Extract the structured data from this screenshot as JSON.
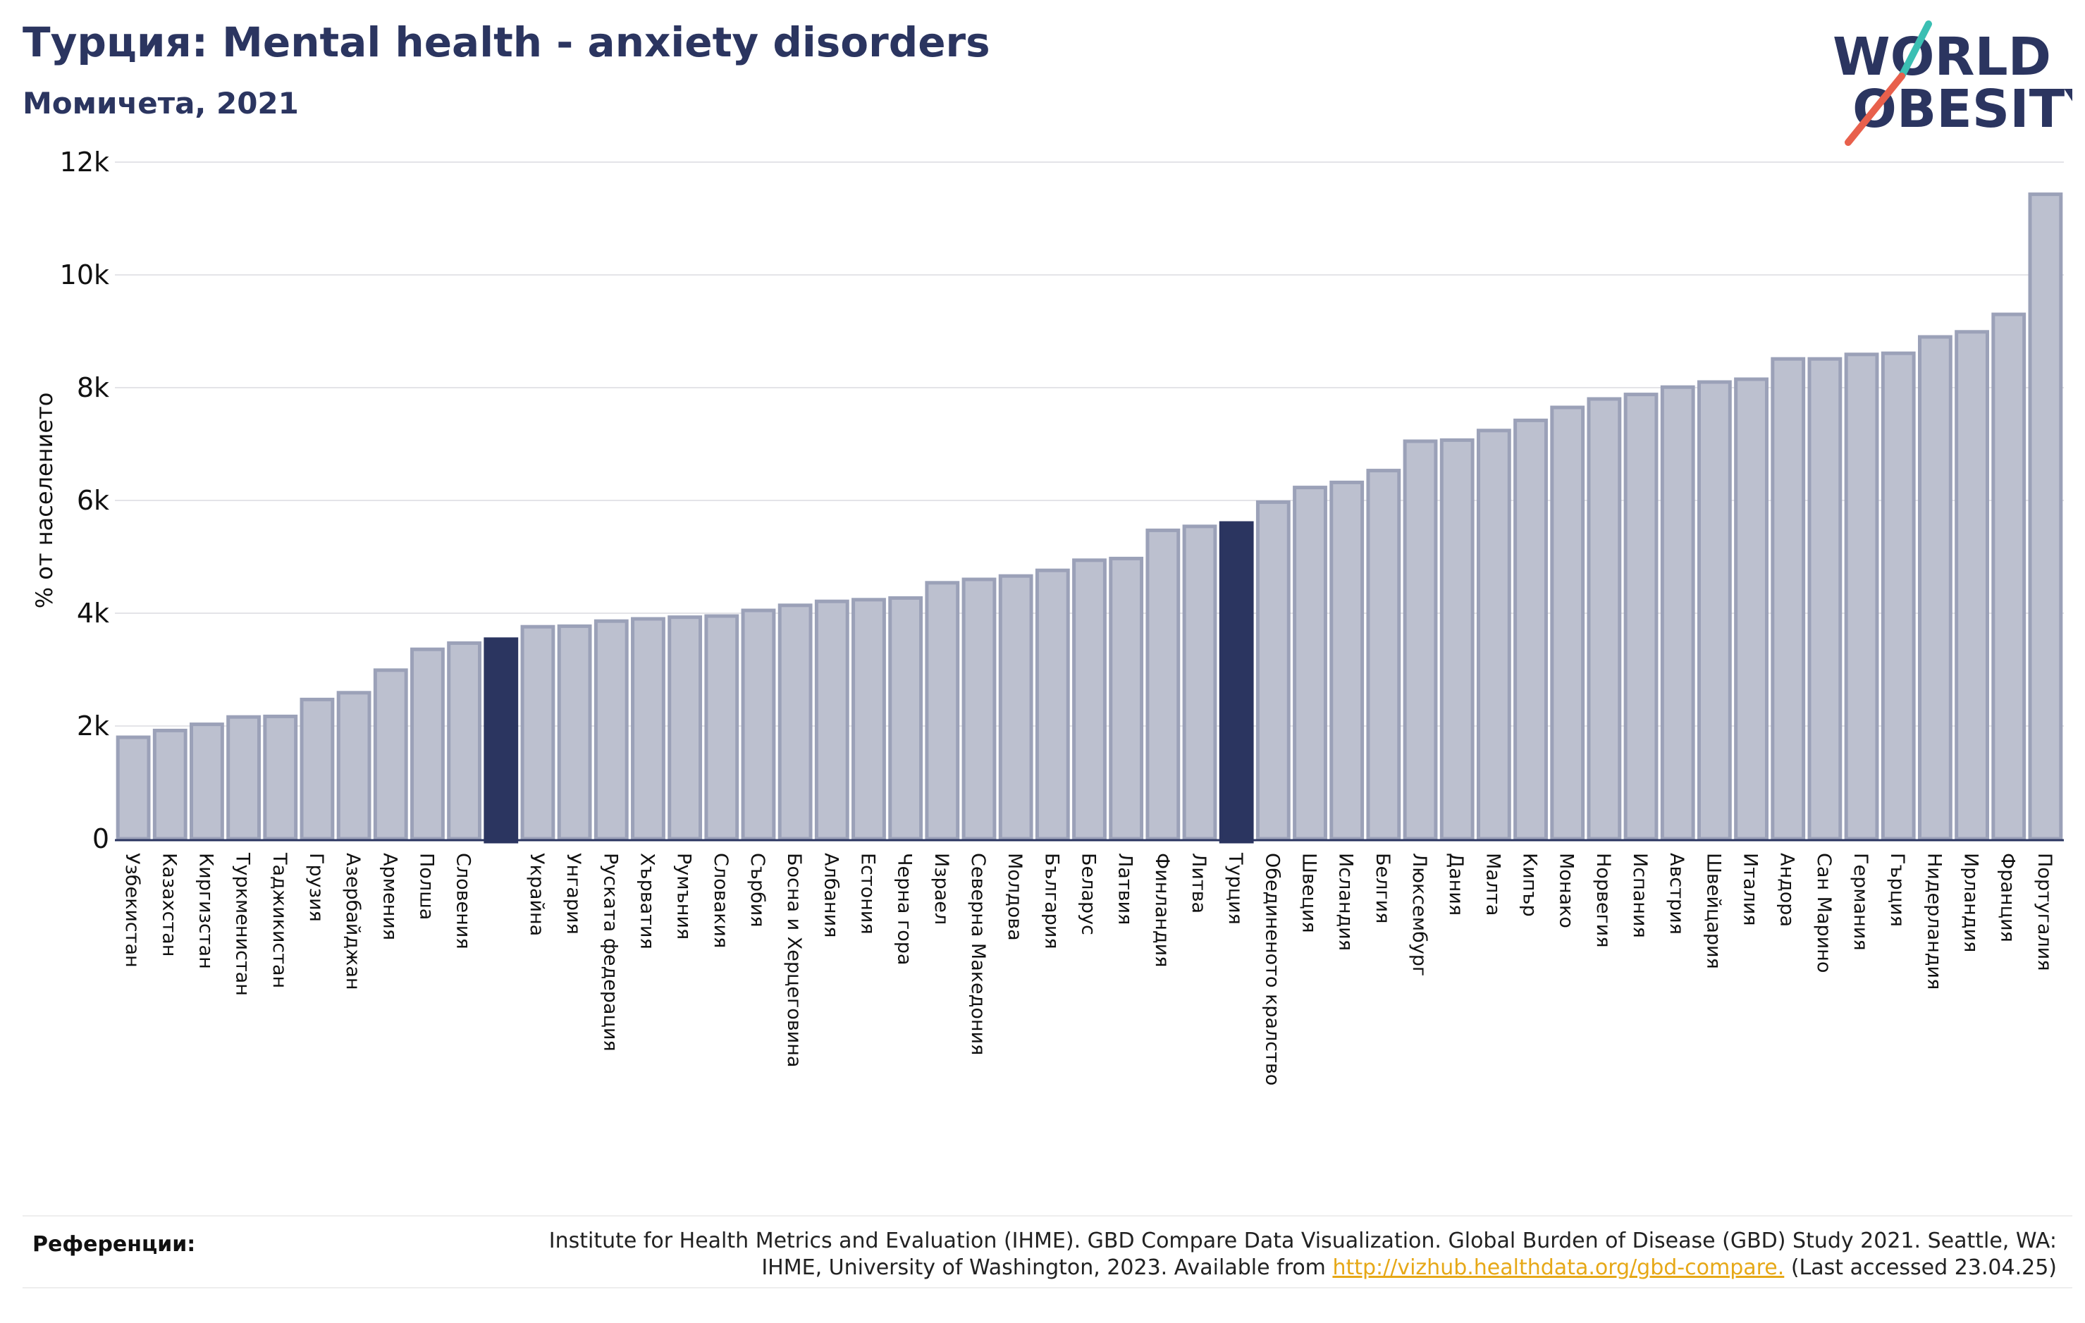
{
  "header": {
    "title": "Турция: Mental health - anxiety disorders",
    "subtitle": "Момичета, 2021"
  },
  "logo": {
    "line1": "WORLD",
    "line2": "OBESITY",
    "slash_teal": "#3bbfb3",
    "slash_red": "#e8604c",
    "text_color": "#2b3560"
  },
  "chart_data": {
    "type": "bar",
    "ylabel": "% от населението",
    "ylim": [
      0,
      12000
    ],
    "yticks": [
      0,
      2000,
      4000,
      6000,
      8000,
      10000,
      12000
    ],
    "ytick_labels": [
      "0",
      "2k",
      "4k",
      "6k",
      "8k",
      "10k",
      "12k"
    ],
    "grid": true,
    "colors": {
      "bar": "#bcc0cf",
      "bar_edge": "#9ba1b8",
      "highlight": "#2b3560"
    },
    "categories": [
      "Узбекистан",
      "Казахстан",
      "Киргизстан",
      "Туркменистан",
      "Таджикистан",
      "Грузия",
      "Азербайджан",
      "Армения",
      "Полша",
      "Словения",
      "",
      "Украйна",
      "Унгария",
      "Руската федерация",
      "Хърватия",
      "Румъния",
      "Словакия",
      "Сърбия",
      "Босна и Херцеговина",
      "Албания",
      "Естония",
      "Черна гора",
      "Израел",
      "Северна Македония",
      "Молдова",
      "България",
      "Беларус",
      "Латвия",
      "Финландия",
      "Литва",
      "Турция",
      "Обединеното кралство",
      "Швеция",
      "Исландия",
      "Белгия",
      "Люксембург",
      "Дания",
      "Малта",
      "Кипър",
      "Монако",
      "Норвегия",
      "Испания",
      "Австрия",
      "Швейцария",
      "Италия",
      "Андора",
      "Сан Марино",
      "Германия",
      "Гърция",
      "Нидерландия",
      "Ирландия",
      "Франция",
      "Португалия"
    ],
    "values": [
      1800,
      1920,
      2030,
      2160,
      2170,
      2470,
      2590,
      2990,
      3360,
      3470,
      3540,
      3760,
      3770,
      3860,
      3900,
      3930,
      3950,
      4050,
      4140,
      4210,
      4240,
      4270,
      4540,
      4600,
      4660,
      4760,
      4940,
      4970,
      5470,
      5540,
      5600,
      5970,
      6230,
      6320,
      6530,
      7050,
      7070,
      7240,
      7420,
      7650,
      7800,
      7880,
      8010,
      8100,
      8150,
      8510,
      8510,
      8590,
      8610,
      8900,
      8990,
      9300,
      11430
    ],
    "highlight_indices": [
      10,
      30
    ]
  },
  "references": {
    "label": "Референции:",
    "text": "Institute for Health Metrics and Evaluation (IHME). GBD Compare Data Visualization. Global Burden of Disease (GBD) Study 2021. Seattle, WA: IHME, University of Washington, 2023. Available from ",
    "link": "http://vizhub.healthdata.org/gbd-compare.",
    "suffix": " (Last accessed 23.04.25)"
  }
}
